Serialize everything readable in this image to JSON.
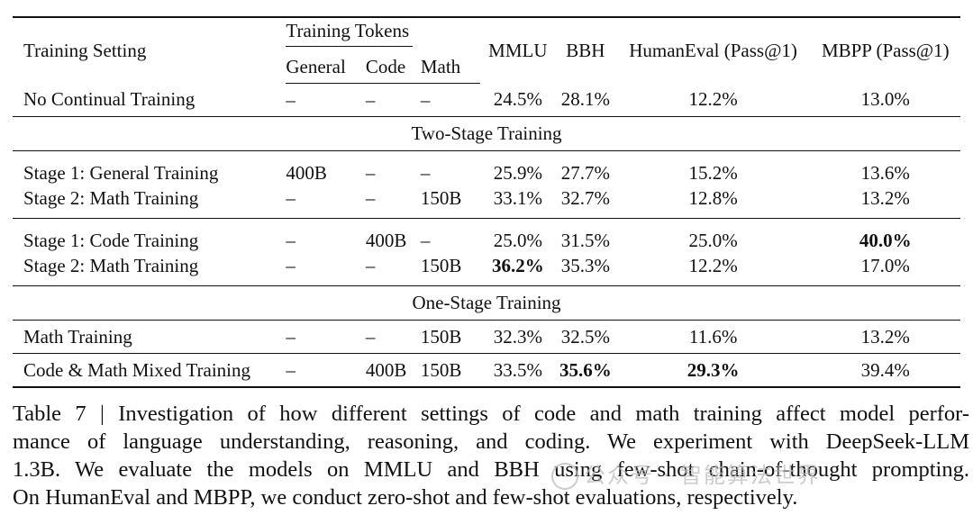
{
  "table": {
    "headers": {
      "setting": "Training Setting",
      "tokens_group": "Training Tokens",
      "general": "General",
      "code": "Code",
      "math": "Math",
      "mmlu": "MMLU",
      "bbh": "BBH",
      "humaneval": "HumanEval (Pass@1)",
      "mbpp": "MBPP (Pass@1)"
    },
    "no_cont": [
      "No Continual Training",
      "–",
      "–",
      "–",
      "24.5%",
      "28.1%",
      "12.2%",
      "13.0%"
    ],
    "section_two": "Two-Stage Training",
    "g1_r1": [
      "Stage 1: General Training",
      "400B",
      "–",
      "–",
      "25.9%",
      "27.7%",
      "15.2%",
      "13.6%"
    ],
    "g1_r2": [
      "Stage 2: Math Training",
      "–",
      "–",
      "150B",
      "33.1%",
      "32.7%",
      "12.8%",
      "13.2%"
    ],
    "g2_r1": [
      "Stage 1: Code Training",
      "–",
      "400B",
      "–",
      "25.0%",
      "31.5%",
      "25.0%",
      "40.0%"
    ],
    "g2_r2": [
      "Stage 2: Math Training",
      "–",
      "–",
      "150B",
      "36.2%",
      "35.3%",
      "12.2%",
      "17.0%"
    ],
    "section_one": "One-Stage Training",
    "math_only": [
      "Math Training",
      "–",
      "–",
      "150B",
      "32.3%",
      "32.5%",
      "11.6%",
      "13.2%"
    ],
    "mixed": [
      "Code & Math Mixed Training",
      "–",
      "400B",
      "150B",
      "33.5%",
      "35.6%",
      "29.3%",
      "39.4%"
    ]
  },
  "caption": {
    "line1": "Table 7 | Investigation of how different settings of code and math training affect model perfor-",
    "line2": "mance of language understanding, reasoning, and coding. We experiment with DeepSeek-LLM",
    "line3": "1.3B. We evaluate the models on MMLU and BBH using few-shot chain-of-thought prompting.",
    "line4": "On HumanEval and MBPP, we conduct zero-shot and few-shot evaluations, respectively."
  },
  "watermark": "公众号 · 智能算法世界"
}
